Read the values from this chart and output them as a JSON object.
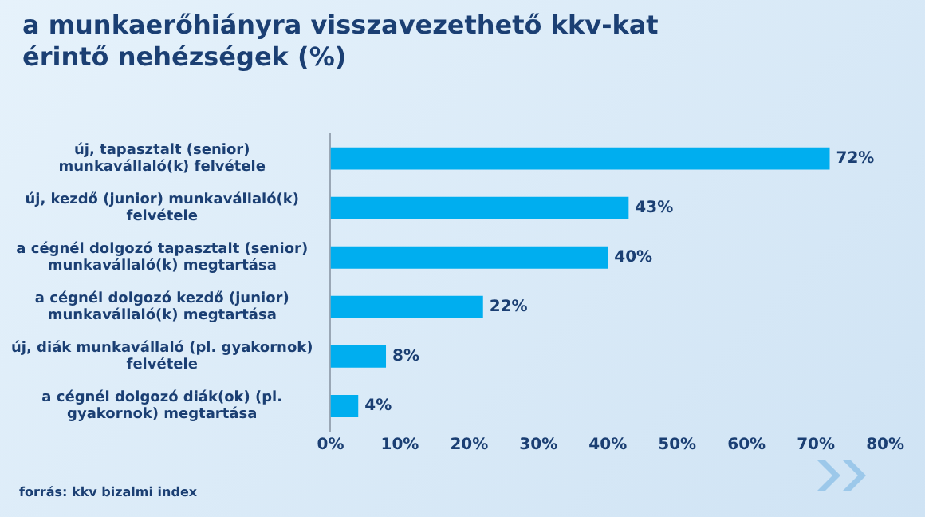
{
  "chart_data": {
    "type": "bar",
    "orientation": "horizontal",
    "title": "a munkaerőhiányra visszavezethető kkv-kat érintő nehézségek (%)",
    "categories": [
      "új, tapasztalt (senior) munkavállaló(k) felvétele",
      "új, kezdő (junior) munkavállaló(k) felvétele",
      "a cégnél dolgozó tapasztalt (senior) munkavállaló(k) megtartása",
      "a cégnél dolgozó kezdő (junior) munkavállaló(k) megtartása",
      "új, diák munkavállaló (pl. gyakornok) felvétele",
      "a cégnél dolgozó diák(ok) (pl. gyakornok) megtartása"
    ],
    "values": [
      72,
      43,
      40,
      22,
      8,
      4
    ],
    "value_labels": [
      "72%",
      "43%",
      "40%",
      "22%",
      "8%",
      "4%"
    ],
    "color": "#00aeef",
    "xlim": [
      0,
      80
    ],
    "xticks": [
      {
        "value": 0,
        "label": "0%"
      },
      {
        "value": 10,
        "label": "10%"
      },
      {
        "value": 20,
        "label": "20%"
      },
      {
        "value": 30,
        "label": "30%"
      },
      {
        "value": 40,
        "label": "40%"
      },
      {
        "value": 50,
        "label": "50%"
      },
      {
        "value": 60,
        "label": "60%"
      },
      {
        "value": 70,
        "label": "70%"
      },
      {
        "value": 80,
        "label": "80%"
      }
    ],
    "grid": false,
    "annotations": [
      "forrás: kkv bizalmi index"
    ]
  }
}
